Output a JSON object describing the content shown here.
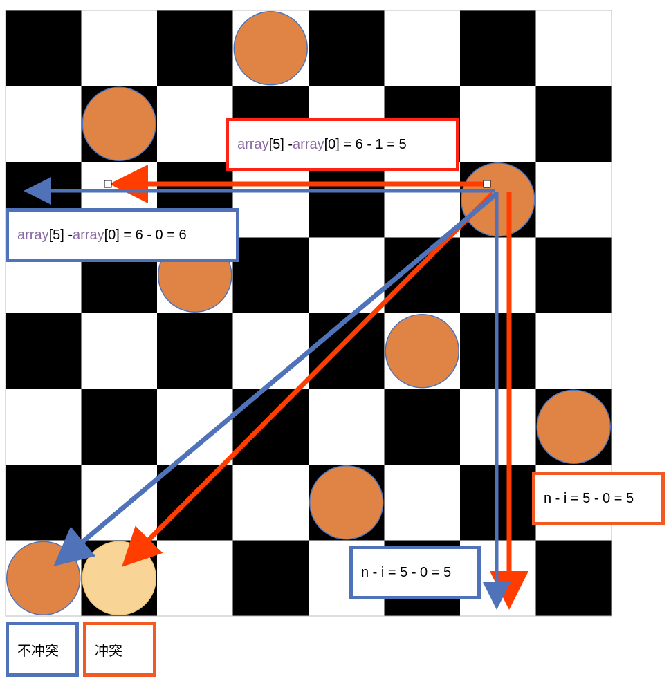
{
  "board": {
    "size": 8,
    "dark_color": "#000000",
    "light_color": "#ffffff",
    "queen_color": "#e08446",
    "queen_outline": "#4f72b8",
    "highlight_color": "#f8d596",
    "queens": [
      {
        "row": 0,
        "col": 3
      },
      {
        "row": 1,
        "col": 1
      },
      {
        "row": 2,
        "col": 6
      },
      {
        "row": 3,
        "col": 2
      },
      {
        "row": 4,
        "col": 5
      },
      {
        "row": 5,
        "col": 7
      },
      {
        "row": 6,
        "col": 4
      },
      {
        "row": 7,
        "col": 0
      },
      {
        "row": 7,
        "col": 1,
        "highlight": true
      }
    ]
  },
  "colors": {
    "no_conflict": "#4f72b8",
    "conflict": "#ff3d00"
  },
  "labels": {
    "red_equation": {
      "fn1": "array",
      "idx1": "[5] - ",
      "fn2": "array",
      "rest": "[0] = 6 - 1 = 5"
    },
    "blue_equation": {
      "fn1": "array",
      "idx1": "[5] - ",
      "fn2": "array",
      "rest": "[0] = 6 - 0 = 6"
    },
    "orange_ni": "n - i = 5 - 0 = 5",
    "blue_ni": "n - i = 5 - 0 = 5"
  },
  "legend": {
    "no_conflict": "不冲突",
    "conflict": "冲突"
  }
}
